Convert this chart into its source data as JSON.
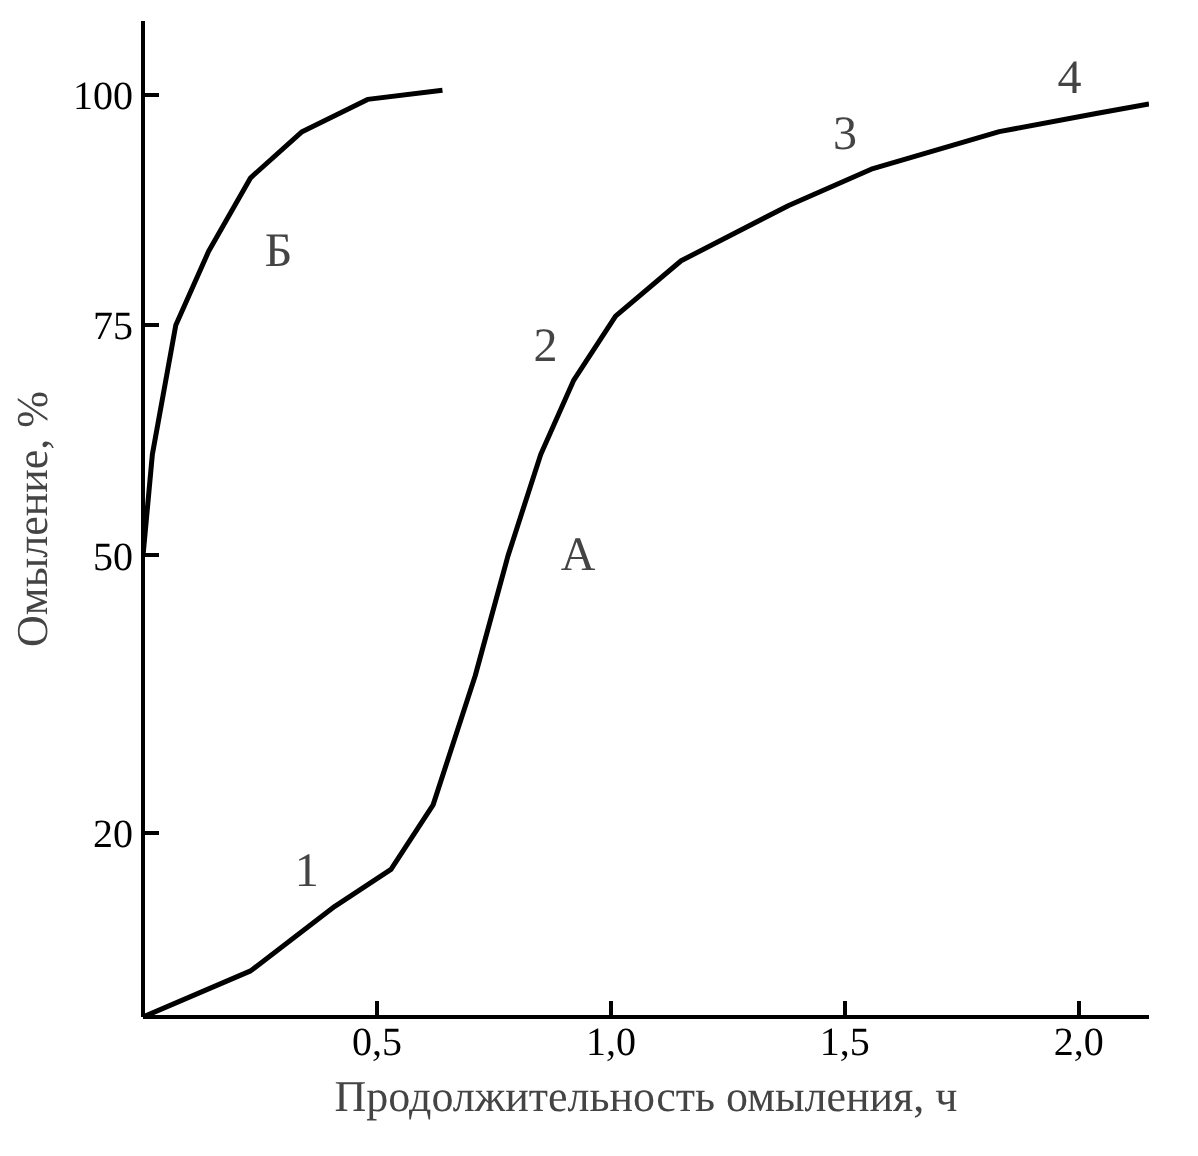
{
  "chart_data": {
    "type": "line",
    "xlabel": "Продолжительность омыления, ч",
    "ylabel": "Омыление, %",
    "xlim": [
      0,
      2.15
    ],
    "ylim": [
      0,
      108
    ],
    "xticks": [
      {
        "value": 0.5,
        "label": "0,5"
      },
      {
        "value": 1.0,
        "label": "1,0"
      },
      {
        "value": 1.5,
        "label": "1,5"
      },
      {
        "value": 2.0,
        "label": "2,0"
      }
    ],
    "yticks": [
      20,
      50,
      75,
      100
    ],
    "grid": false,
    "marker": "none",
    "line_style": "solid",
    "series": [
      {
        "name": "А",
        "color": "#000000",
        "x": [
          0,
          0.23,
          0.41,
          0.53,
          0.62,
          0.71,
          0.78,
          0.85,
          0.92,
          1.01,
          1.15,
          1.38,
          1.56,
          1.83,
          2.04,
          2.15
        ],
        "values": [
          0,
          5,
          12,
          16,
          23,
          37,
          50,
          61,
          69,
          76,
          82,
          88,
          92,
          96,
          98,
          99
        ]
      },
      {
        "name": "Б",
        "color": "#000000",
        "x": [
          0,
          0.02,
          0.07,
          0.14,
          0.23,
          0.34,
          0.48,
          0.64
        ],
        "values": [
          50,
          61,
          75,
          83,
          91,
          96,
          99.5,
          100.5
        ]
      }
    ],
    "annotations": [
      {
        "text": "1",
        "x": 0.41,
        "y": 12
      },
      {
        "text": "2",
        "x": 0.92,
        "y": 69
      },
      {
        "text": "3",
        "x": 1.56,
        "y": 92
      },
      {
        "text": "4",
        "x": 2.04,
        "y": 98
      }
    ]
  }
}
